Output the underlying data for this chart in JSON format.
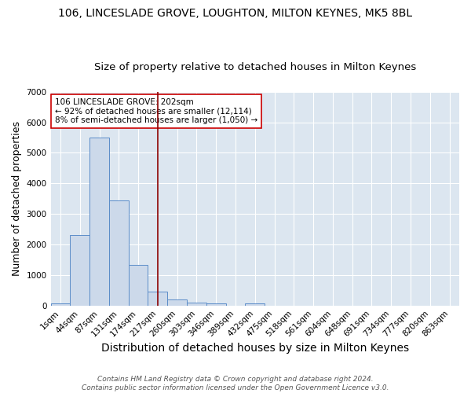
{
  "title": "106, LINCESLADE GROVE, LOUGHTON, MILTON KEYNES, MK5 8BL",
  "subtitle": "Size of property relative to detached houses in Milton Keynes",
  "xlabel": "Distribution of detached houses by size in Milton Keynes",
  "ylabel": "Number of detached properties",
  "bin_labels": [
    "1sqm",
    "44sqm",
    "87sqm",
    "131sqm",
    "174sqm",
    "217sqm",
    "260sqm",
    "303sqm",
    "346sqm",
    "389sqm",
    "432sqm",
    "475sqm",
    "518sqm",
    "561sqm",
    "604sqm",
    "648sqm",
    "691sqm",
    "734sqm",
    "777sqm",
    "820sqm",
    "863sqm"
  ],
  "bar_values": [
    80,
    2300,
    5500,
    3450,
    1330,
    460,
    195,
    100,
    60,
    0,
    60,
    0,
    0,
    0,
    0,
    0,
    0,
    0,
    0,
    0,
    0
  ],
  "bar_color": "#ccd9ea",
  "bar_edge_color": "#5b8cc8",
  "vline_x": 5.0,
  "vline_color": "#8b0000",
  "annotation_text": "106 LINCESLADE GROVE: 202sqm\n← 92% of detached houses are smaller (12,114)\n8% of semi-detached houses are larger (1,050) →",
  "annotation_box_color": "#ffffff",
  "annotation_box_edge": "#cc0000",
  "ylim": [
    0,
    7000
  ],
  "fig_background_color": "#ffffff",
  "ax_background_color": "#dce6f0",
  "grid_color": "#ffffff",
  "footer": "Contains HM Land Registry data © Crown copyright and database right 2024.\nContains public sector information licensed under the Open Government Licence v3.0.",
  "title_fontsize": 10,
  "subtitle_fontsize": 9.5,
  "xlabel_fontsize": 10,
  "ylabel_fontsize": 9,
  "tick_fontsize": 7.5,
  "footer_fontsize": 6.5
}
